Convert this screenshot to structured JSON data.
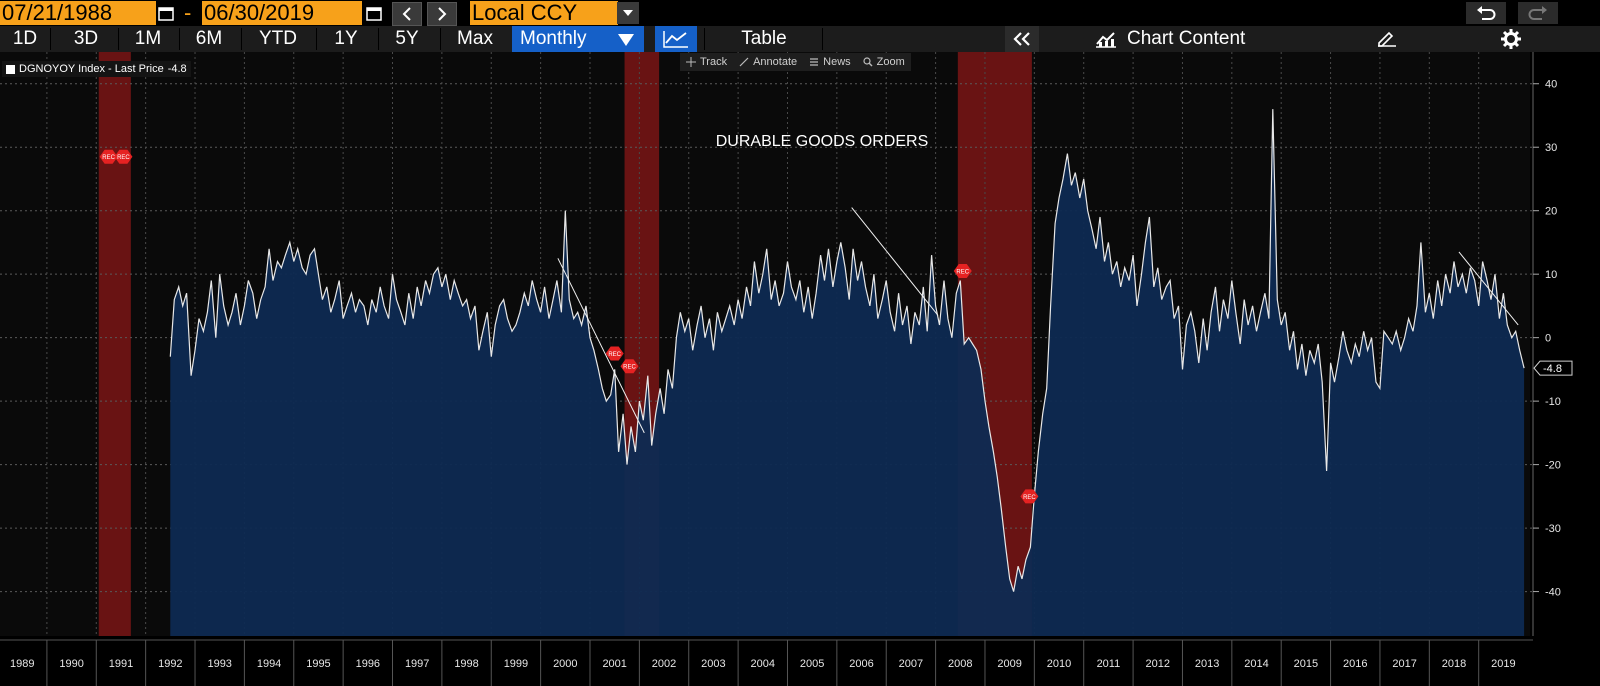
{
  "toolbar": {
    "start_date": "07/21/1988",
    "date_separator": "-",
    "end_date": "06/30/2019",
    "currency": "Local CCY",
    "periods": [
      "1D",
      "3D",
      "1M",
      "6M",
      "YTD",
      "1Y",
      "5Y",
      "Max"
    ],
    "frequency": "Monthly",
    "table_label": "Table",
    "chart_content_label": "Chart Content"
  },
  "chart_tools": {
    "track": "Track",
    "annotate": "Annotate",
    "news": "News",
    "zoom": "Zoom"
  },
  "legend": {
    "label": "DGNOYOY Index - Last Price",
    "last_value": "-4.8"
  },
  "last_price_tag": "-4.8",
  "colors": {
    "accent_orange": "#f7a11a",
    "selected_blue": "#1560c8",
    "area_fill": "#0e2a52",
    "recession_band": "#7a1515",
    "rec_marker": "#e52222"
  },
  "chart_data": {
    "type": "area",
    "title": "DURABLE GOODS ORDERS",
    "series_name": "DGNOYOY Index",
    "xlim": [
      1988.55,
      2019.6
    ],
    "ylim": [
      -47,
      45
    ],
    "y_ticks": [
      40,
      30,
      20,
      10,
      0,
      -10,
      -20,
      -30,
      -40
    ],
    "x_tick_years": [
      1989,
      1990,
      1991,
      1992,
      1993,
      1994,
      1995,
      1996,
      1997,
      1998,
      1999,
      2000,
      2001,
      2002,
      2003,
      2004,
      2005,
      2006,
      2007,
      2008,
      2009,
      2010,
      2011,
      2012,
      2013,
      2014,
      2015,
      2016,
      2017,
      2018,
      2019
    ],
    "recessions": [
      [
        1990.55,
        1991.2
      ],
      [
        2001.2,
        2001.9
      ],
      [
        2007.95,
        2009.45
      ]
    ],
    "rec_label": "REC",
    "rec_markers": [
      {
        "x": 1990.75,
        "y": 28.5
      },
      {
        "x": 1991.05,
        "y": 28.5
      },
      {
        "x": 2001.0,
        "y": -2.5
      },
      {
        "x": 2001.3,
        "y": -4.5
      },
      {
        "x": 2008.05,
        "y": 10.5
      },
      {
        "x": 2009.4,
        "y": -25
      }
    ],
    "trend_lines": [
      {
        "from": [
          1999.85,
          12.5
        ],
        "to": [
          2001.6,
          -15
        ]
      },
      {
        "from": [
          2005.8,
          20.5
        ],
        "to": [
          2007.55,
          3.5
        ]
      },
      {
        "from": [
          2018.1,
          13.5
        ],
        "to": [
          2019.3,
          2
        ]
      }
    ],
    "points": [
      [
        1992.0,
        -3
      ],
      [
        1992.08,
        6
      ],
      [
        1992.17,
        8
      ],
      [
        1992.25,
        5
      ],
      [
        1992.33,
        7
      ],
      [
        1992.42,
        -6
      ],
      [
        1992.5,
        -2
      ],
      [
        1992.58,
        3
      ],
      [
        1992.67,
        1
      ],
      [
        1992.75,
        4
      ],
      [
        1992.83,
        9
      ],
      [
        1992.92,
        0
      ],
      [
        1993.0,
        10
      ],
      [
        1993.08,
        5
      ],
      [
        1993.17,
        2
      ],
      [
        1993.25,
        4
      ],
      [
        1993.33,
        7
      ],
      [
        1993.42,
        2
      ],
      [
        1993.5,
        5
      ],
      [
        1993.58,
        9
      ],
      [
        1993.67,
        7
      ],
      [
        1993.75,
        3
      ],
      [
        1993.83,
        6
      ],
      [
        1993.92,
        8
      ],
      [
        1994.0,
        14
      ],
      [
        1994.08,
        9
      ],
      [
        1994.17,
        12
      ],
      [
        1994.25,
        11
      ],
      [
        1994.33,
        13
      ],
      [
        1994.42,
        15
      ],
      [
        1994.5,
        12
      ],
      [
        1994.58,
        14
      ],
      [
        1994.67,
        11
      ],
      [
        1994.75,
        10
      ],
      [
        1994.83,
        13
      ],
      [
        1994.92,
        14
      ],
      [
        1995.0,
        10
      ],
      [
        1995.08,
        6
      ],
      [
        1995.17,
        8
      ],
      [
        1995.25,
        4
      ],
      [
        1995.33,
        6
      ],
      [
        1995.42,
        9
      ],
      [
        1995.5,
        3
      ],
      [
        1995.58,
        5
      ],
      [
        1995.67,
        7
      ],
      [
        1995.75,
        4
      ],
      [
        1995.83,
        6
      ],
      [
        1995.92,
        5
      ],
      [
        1996.0,
        2
      ],
      [
        1996.08,
        6
      ],
      [
        1996.17,
        4
      ],
      [
        1996.25,
        8
      ],
      [
        1996.33,
        5
      ],
      [
        1996.42,
        3
      ],
      [
        1996.5,
        10
      ],
      [
        1996.58,
        6
      ],
      [
        1996.67,
        4
      ],
      [
        1996.75,
        2
      ],
      [
        1996.83,
        7
      ],
      [
        1996.92,
        3
      ],
      [
        1997.0,
        8
      ],
      [
        1997.08,
        5
      ],
      [
        1997.17,
        9
      ],
      [
        1997.25,
        7
      ],
      [
        1997.33,
        10
      ],
      [
        1997.42,
        11
      ],
      [
        1997.5,
        8
      ],
      [
        1997.58,
        10
      ],
      [
        1997.67,
        6
      ],
      [
        1997.75,
        9
      ],
      [
        1997.83,
        7
      ],
      [
        1997.92,
        5
      ],
      [
        1998.0,
        6
      ],
      [
        1998.08,
        3
      ],
      [
        1998.17,
        5
      ],
      [
        1998.25,
        -2
      ],
      [
        1998.33,
        1
      ],
      [
        1998.42,
        4
      ],
      [
        1998.5,
        -3
      ],
      [
        1998.58,
        2
      ],
      [
        1998.67,
        5
      ],
      [
        1998.75,
        6
      ],
      [
        1998.83,
        3
      ],
      [
        1998.92,
        1
      ],
      [
        1999.0,
        2
      ],
      [
        1999.08,
        4
      ],
      [
        1999.17,
        7
      ],
      [
        1999.25,
        5
      ],
      [
        1999.33,
        9
      ],
      [
        1999.42,
        6
      ],
      [
        1999.5,
        4
      ],
      [
        1999.58,
        8
      ],
      [
        1999.67,
        3
      ],
      [
        1999.75,
        6
      ],
      [
        1999.83,
        9
      ],
      [
        1999.92,
        4
      ],
      [
        2000.0,
        20
      ],
      [
        2000.08,
        6
      ],
      [
        2000.17,
        3
      ],
      [
        2000.25,
        4
      ],
      [
        2000.33,
        2
      ],
      [
        2000.42,
        5
      ],
      [
        2000.5,
        0
      ],
      [
        2000.58,
        -2
      ],
      [
        2000.67,
        -5
      ],
      [
        2000.75,
        -8
      ],
      [
        2000.83,
        -10
      ],
      [
        2000.92,
        -9
      ],
      [
        2001.0,
        -5
      ],
      [
        2001.08,
        -18
      ],
      [
        2001.17,
        -12
      ],
      [
        2001.25,
        -20
      ],
      [
        2001.33,
        -14
      ],
      [
        2001.42,
        -18
      ],
      [
        2001.5,
        -10
      ],
      [
        2001.58,
        -13
      ],
      [
        2001.67,
        -6
      ],
      [
        2001.75,
        -17
      ],
      [
        2001.83,
        -12
      ],
      [
        2001.92,
        -8
      ],
      [
        2002.0,
        -12
      ],
      [
        2002.08,
        -5
      ],
      [
        2002.17,
        -8
      ],
      [
        2002.25,
        0
      ],
      [
        2002.33,
        4
      ],
      [
        2002.42,
        1
      ],
      [
        2002.5,
        3
      ],
      [
        2002.58,
        -2
      ],
      [
        2002.67,
        2
      ],
      [
        2002.75,
        5
      ],
      [
        2002.83,
        0
      ],
      [
        2002.92,
        3
      ],
      [
        2003.0,
        -2
      ],
      [
        2003.08,
        4
      ],
      [
        2003.17,
        1
      ],
      [
        2003.25,
        3
      ],
      [
        2003.33,
        5
      ],
      [
        2003.42,
        2
      ],
      [
        2003.5,
        6
      ],
      [
        2003.58,
        3
      ],
      [
        2003.67,
        8
      ],
      [
        2003.75,
        5
      ],
      [
        2003.83,
        12
      ],
      [
        2003.92,
        7
      ],
      [
        2004.0,
        10
      ],
      [
        2004.08,
        14
      ],
      [
        2004.17,
        6
      ],
      [
        2004.25,
        9
      ],
      [
        2004.33,
        5
      ],
      [
        2004.42,
        7
      ],
      [
        2004.5,
        12
      ],
      [
        2004.58,
        8
      ],
      [
        2004.67,
        6
      ],
      [
        2004.75,
        9
      ],
      [
        2004.83,
        4
      ],
      [
        2004.92,
        8
      ],
      [
        2005.0,
        3
      ],
      [
        2005.08,
        7
      ],
      [
        2005.17,
        13
      ],
      [
        2005.25,
        9
      ],
      [
        2005.33,
        14
      ],
      [
        2005.42,
        8
      ],
      [
        2005.5,
        12
      ],
      [
        2005.58,
        15
      ],
      [
        2005.67,
        11
      ],
      [
        2005.75,
        6
      ],
      [
        2005.83,
        14
      ],
      [
        2005.92,
        9
      ],
      [
        2006.0,
        12
      ],
      [
        2006.08,
        8
      ],
      [
        2006.17,
        5
      ],
      [
        2006.25,
        10
      ],
      [
        2006.33,
        3
      ],
      [
        2006.42,
        6
      ],
      [
        2006.5,
        9
      ],
      [
        2006.58,
        4
      ],
      [
        2006.67,
        1
      ],
      [
        2006.75,
        7
      ],
      [
        2006.83,
        2
      ],
      [
        2006.92,
        5
      ],
      [
        2007.0,
        -1
      ],
      [
        2007.08,
        4
      ],
      [
        2007.17,
        2
      ],
      [
        2007.25,
        8
      ],
      [
        2007.33,
        1
      ],
      [
        2007.42,
        13
      ],
      [
        2007.5,
        5
      ],
      [
        2007.58,
        2
      ],
      [
        2007.67,
        9
      ],
      [
        2007.75,
        3
      ],
      [
        2007.83,
        0
      ],
      [
        2007.92,
        7
      ],
      [
        2008.0,
        9
      ],
      [
        2008.08,
        -1
      ],
      [
        2008.17,
        0
      ],
      [
        2008.25,
        -1
      ],
      [
        2008.33,
        -2
      ],
      [
        2008.42,
        -5
      ],
      [
        2008.5,
        -10
      ],
      [
        2008.58,
        -14
      ],
      [
        2008.67,
        -18
      ],
      [
        2008.75,
        -22
      ],
      [
        2008.83,
        -27
      ],
      [
        2008.92,
        -33
      ],
      [
        2009.0,
        -38
      ],
      [
        2009.08,
        -40
      ],
      [
        2009.17,
        -36
      ],
      [
        2009.25,
        -38
      ],
      [
        2009.33,
        -35
      ],
      [
        2009.42,
        -33
      ],
      [
        2009.5,
        -25
      ],
      [
        2009.58,
        -18
      ],
      [
        2009.67,
        -12
      ],
      [
        2009.75,
        -8
      ],
      [
        2009.83,
        5
      ],
      [
        2009.92,
        18
      ],
      [
        2010.0,
        22
      ],
      [
        2010.08,
        25
      ],
      [
        2010.17,
        29
      ],
      [
        2010.25,
        24
      ],
      [
        2010.33,
        26
      ],
      [
        2010.42,
        22
      ],
      [
        2010.5,
        25
      ],
      [
        2010.58,
        20
      ],
      [
        2010.67,
        17
      ],
      [
        2010.75,
        14
      ],
      [
        2010.83,
        19
      ],
      [
        2010.92,
        12
      ],
      [
        2011.0,
        15
      ],
      [
        2011.08,
        10
      ],
      [
        2011.17,
        12
      ],
      [
        2011.25,
        8
      ],
      [
        2011.33,
        11
      ],
      [
        2011.42,
        9
      ],
      [
        2011.5,
        13
      ],
      [
        2011.58,
        5
      ],
      [
        2011.67,
        10
      ],
      [
        2011.75,
        15
      ],
      [
        2011.83,
        19
      ],
      [
        2011.92,
        8
      ],
      [
        2012.0,
        11
      ],
      [
        2012.08,
        6
      ],
      [
        2012.17,
        8
      ],
      [
        2012.25,
        9
      ],
      [
        2012.33,
        3
      ],
      [
        2012.42,
        5
      ],
      [
        2012.5,
        -5
      ],
      [
        2012.58,
        2
      ],
      [
        2012.67,
        4
      ],
      [
        2012.75,
        1
      ],
      [
        2012.83,
        -4
      ],
      [
        2012.92,
        3
      ],
      [
        2013.0,
        -2
      ],
      [
        2013.08,
        4
      ],
      [
        2013.17,
        8
      ],
      [
        2013.25,
        1
      ],
      [
        2013.33,
        6
      ],
      [
        2013.42,
        3
      ],
      [
        2013.5,
        9
      ],
      [
        2013.58,
        4
      ],
      [
        2013.67,
        -1
      ],
      [
        2013.75,
        6
      ],
      [
        2013.83,
        2
      ],
      [
        2013.92,
        5
      ],
      [
        2014.0,
        1
      ],
      [
        2014.08,
        4
      ],
      [
        2014.17,
        7
      ],
      [
        2014.25,
        3
      ],
      [
        2014.33,
        36
      ],
      [
        2014.42,
        6
      ],
      [
        2014.5,
        2
      ],
      [
        2014.58,
        4
      ],
      [
        2014.67,
        -2
      ],
      [
        2014.75,
        1
      ],
      [
        2014.83,
        -5
      ],
      [
        2014.92,
        -1
      ],
      [
        2015.0,
        -6
      ],
      [
        2015.08,
        -2
      ],
      [
        2015.17,
        -4
      ],
      [
        2015.25,
        -1
      ],
      [
        2015.33,
        -7
      ],
      [
        2015.42,
        -21
      ],
      [
        2015.5,
        -4
      ],
      [
        2015.58,
        -7
      ],
      [
        2015.67,
        -3
      ],
      [
        2015.75,
        1
      ],
      [
        2015.83,
        -2
      ],
      [
        2015.92,
        -4
      ],
      [
        2016.0,
        -1
      ],
      [
        2016.08,
        -3
      ],
      [
        2016.17,
        1
      ],
      [
        2016.25,
        -2
      ],
      [
        2016.33,
        0
      ],
      [
        2016.42,
        -7
      ],
      [
        2016.5,
        -8
      ],
      [
        2016.58,
        1
      ],
      [
        2016.67,
        0
      ],
      [
        2016.75,
        -1
      ],
      [
        2016.83,
        1
      ],
      [
        2016.92,
        -2
      ],
      [
        2017.0,
        0
      ],
      [
        2017.08,
        3
      ],
      [
        2017.17,
        1
      ],
      [
        2017.25,
        5
      ],
      [
        2017.33,
        15
      ],
      [
        2017.42,
        4
      ],
      [
        2017.5,
        7
      ],
      [
        2017.58,
        3
      ],
      [
        2017.67,
        9
      ],
      [
        2017.75,
        5
      ],
      [
        2017.83,
        10
      ],
      [
        2017.92,
        7
      ],
      [
        2018.0,
        12
      ],
      [
        2018.08,
        8
      ],
      [
        2018.17,
        10
      ],
      [
        2018.25,
        7
      ],
      [
        2018.33,
        11
      ],
      [
        2018.42,
        9
      ],
      [
        2018.5,
        5
      ],
      [
        2018.58,
        12
      ],
      [
        2018.67,
        9
      ],
      [
        2018.75,
        6
      ],
      [
        2018.83,
        10
      ],
      [
        2018.92,
        3
      ],
      [
        2019.0,
        7
      ],
      [
        2019.08,
        2
      ],
      [
        2019.17,
        0
      ],
      [
        2019.25,
        1
      ],
      [
        2019.33,
        -2
      ],
      [
        2019.42,
        -4.8
      ]
    ]
  }
}
